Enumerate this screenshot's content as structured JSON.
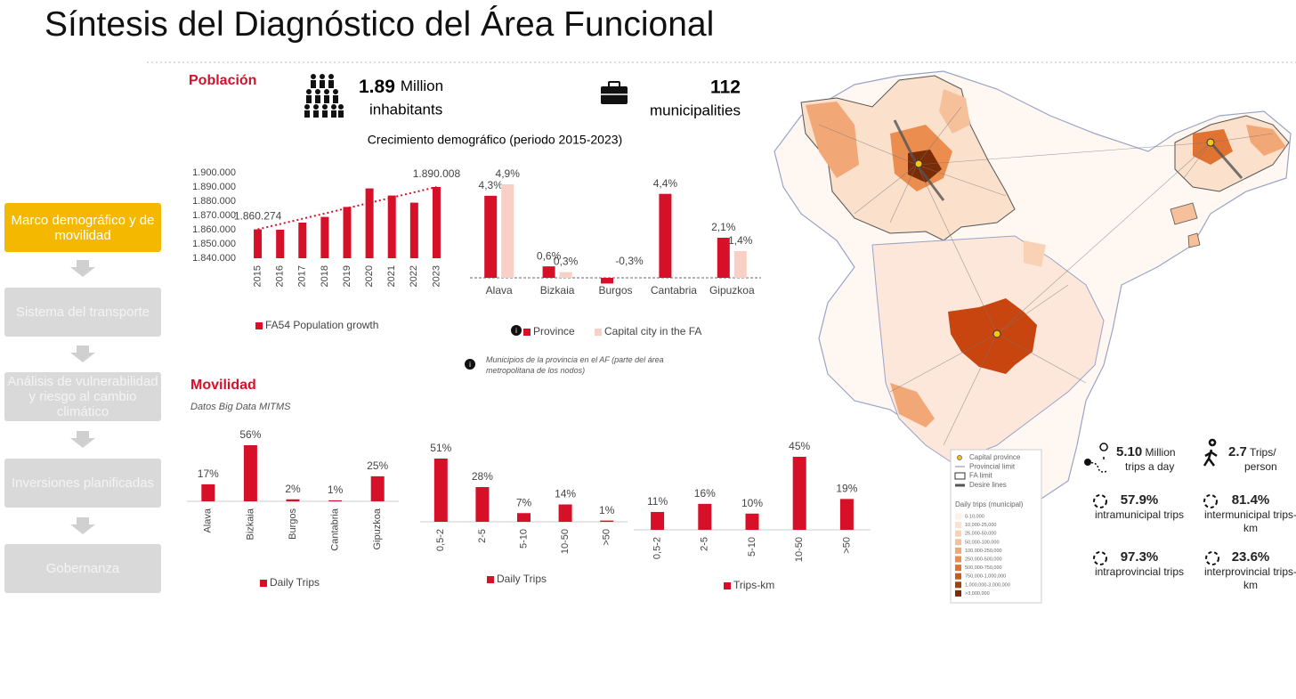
{
  "header": {
    "title": "Síntesis del Diagnóstico del Área Funcional"
  },
  "sidebar": {
    "items": [
      "Marco demográfico y de movilidad",
      "Sistema del transporte",
      "Análisis de vulnerabilidad y riesgo al cambio climático",
      "Inversiones planificadas",
      "Gobernanza"
    ],
    "active": 0
  },
  "population": {
    "heading": "Población",
    "inhabitants": {
      "value": "1.89",
      "unit": "Million",
      "label": "inhabitants"
    },
    "municipalities": {
      "value": "112",
      "label": "municipalities"
    },
    "growth_title": "Crecimiento demográfico (periodo 2015-2023)",
    "note": "Municipios de la provincia en el AF (parte del área metropolitana de los nodos)"
  },
  "mobility": {
    "heading": "Movilidad",
    "source": "Datos Big Data MITMS"
  },
  "stats": [
    {
      "value": "5.10",
      "unit": "Million",
      "label": "trips a day"
    },
    {
      "value": "2.7",
      "unit": "Trips/",
      "label": "person"
    },
    {
      "value": "57.9%",
      "label": "intramunicipal trips"
    },
    {
      "value": "81.4%",
      "label": "intermunicipal trips-km"
    },
    {
      "value": "97.3%",
      "label": "intraprovincial trips"
    },
    {
      "value": "23.6%",
      "label": "interprovincial trips-km"
    }
  ],
  "map_legend": {
    "items": [
      "Capital province",
      "Provincial limit",
      "FA limit",
      "Desire lines"
    ],
    "title": "Daily trips (municipal)",
    "classes": [
      {
        "label": "0-10,000",
        "color": "#fdf1e8"
      },
      {
        "label": "10,000-25,000",
        "color": "#fbe2d0"
      },
      {
        "label": "25,000-50,000",
        "color": "#f9d2b6"
      },
      {
        "label": "50,000-100,000",
        "color": "#f6c09b"
      },
      {
        "label": "100,000-250,000",
        "color": "#f2a876"
      },
      {
        "label": "250,000-500,000",
        "color": "#ec8d50"
      },
      {
        "label": "500,000-750,000",
        "color": "#e07232"
      },
      {
        "label": "750,000-1,000,000",
        "color": "#c85a1d"
      },
      {
        "label": "1,000,000-3,000,000",
        "color": "#a2430f"
      },
      {
        "label": ">3,000,000",
        "color": "#7a2c06"
      }
    ]
  },
  "chart_data": [
    {
      "type": "bar",
      "categories": [
        "2015",
        "2016",
        "2017",
        "2018",
        "2019",
        "2020",
        "2021",
        "2022",
        "2023"
      ],
      "series": [
        {
          "name": "FA54 Population growth",
          "color": "#d7102a",
          "values": [
            1860274,
            1860000,
            1865000,
            1869000,
            1876000,
            1889000,
            1884000,
            1879000,
            1890008
          ],
          "value_labels": [
            "1.860.274",
            null,
            null,
            null,
            null,
            null,
            null,
            null,
            "1.890.008"
          ]
        }
      ],
      "ylim": [
        1840000,
        1900000
      ],
      "yticks": [
        {
          "value": 1840000,
          "label": "1.840.000"
        },
        {
          "value": 1850000,
          "label": "1.850.000"
        },
        {
          "value": 1860000,
          "label": "1.860.000"
        },
        {
          "value": 1870000,
          "label": "1.870.000"
        },
        {
          "value": 1880000,
          "label": "1.880.000"
        },
        {
          "value": 1890000,
          "label": "1.890.000"
        },
        {
          "value": 1900000,
          "label": "1.900.000"
        }
      ],
      "trendline": true
    },
    {
      "type": "bar",
      "categories": [
        "Alava",
        "Bizkaia",
        "Burgos",
        "Cantabria",
        "Gipuzkoa"
      ],
      "series": [
        {
          "name": "Province",
          "color": "#d7102a",
          "values": [
            4.3,
            0.6,
            -0.3,
            4.4,
            2.1
          ],
          "value_labels": [
            "4,3%",
            "0,6%",
            "-0,3%",
            "4,4%",
            "2,1%"
          ]
        },
        {
          "name": "Capital city in the FA",
          "color": "#f9d0c6",
          "values": [
            4.9,
            0.3,
            null,
            null,
            1.4
          ],
          "value_labels": [
            "4,9%",
            "0,3%",
            null,
            null,
            "1,4%"
          ]
        }
      ]
    },
    {
      "type": "bar",
      "categories": [
        "Alava",
        "Bizkaia",
        "Burgos",
        "Cantabria",
        "Gipuzkoa"
      ],
      "series": [
        {
          "name": "Daily Trips",
          "color": "#d7102a",
          "values": [
            17,
            56,
            2,
            1,
            25
          ],
          "value_labels": [
            "17%",
            "56%",
            "2%",
            "1%",
            "25%"
          ]
        }
      ]
    },
    {
      "type": "bar",
      "categories": [
        "0,5-2",
        "2-5",
        "5-10",
        "10-50",
        ">50"
      ],
      "series": [
        {
          "name": "Daily Trips",
          "color": "#d7102a",
          "values": [
            51,
            28,
            7,
            14,
            1
          ],
          "value_labels": [
            "51%",
            "28%",
            "7%",
            "14%",
            "1%"
          ]
        }
      ]
    },
    {
      "type": "bar",
      "categories": [
        "0,5-2",
        "2-5",
        "5-10",
        "10-50",
        ">50"
      ],
      "series": [
        {
          "name": "Trips-km",
          "color": "#d7102a",
          "values": [
            11,
            16,
            10,
            45,
            19
          ],
          "value_labels": [
            "11%",
            "16%",
            "10%",
            "45%",
            "19%"
          ]
        }
      ]
    }
  ]
}
